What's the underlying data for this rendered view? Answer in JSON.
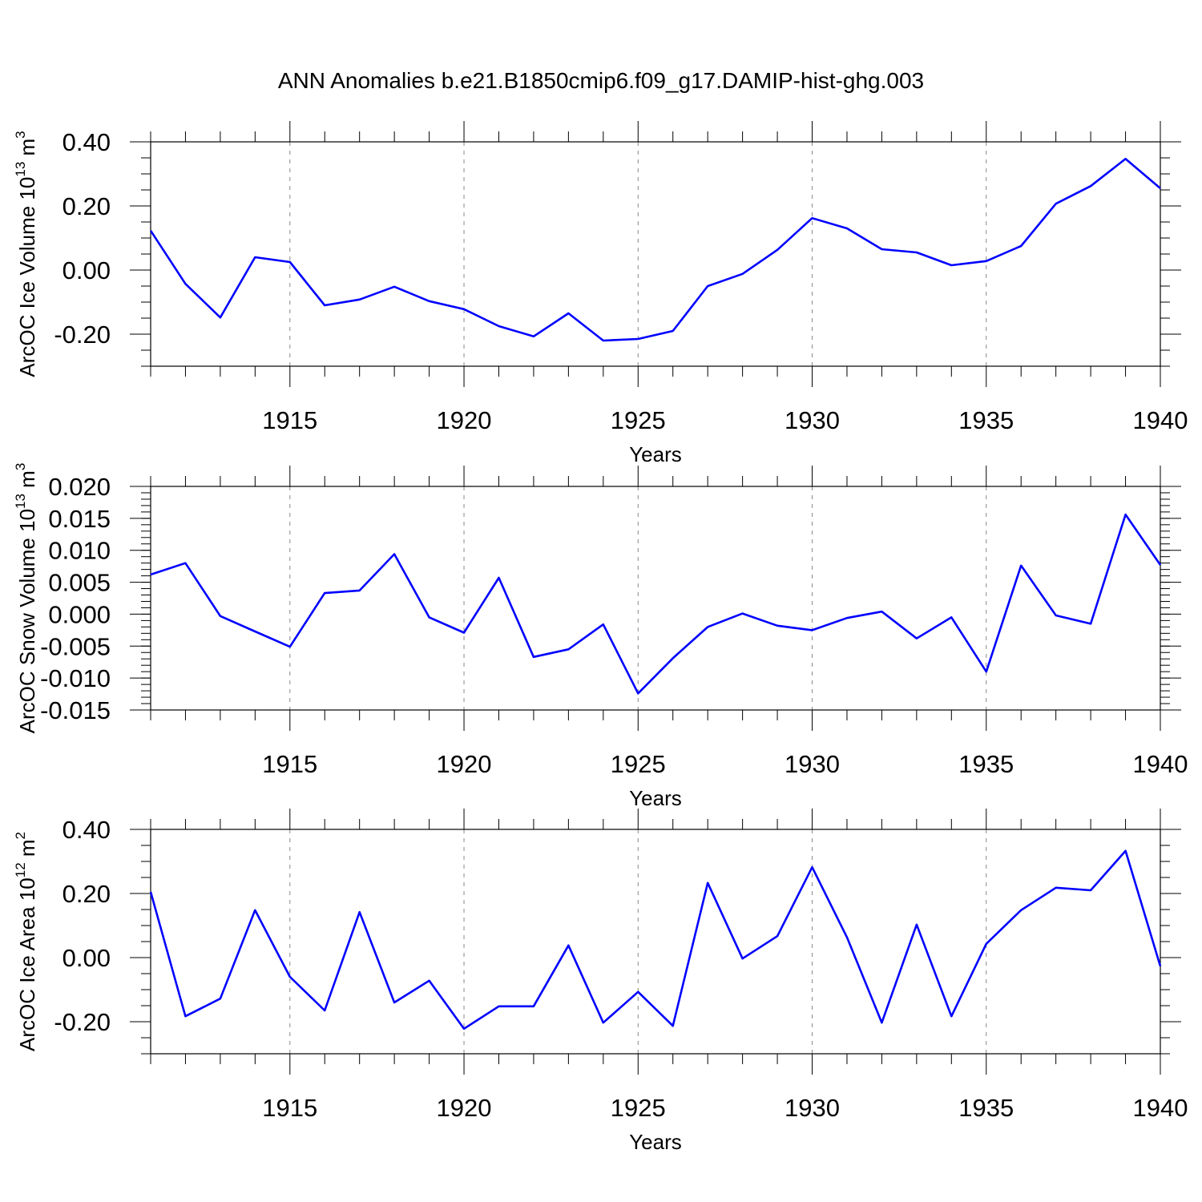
{
  "title": "ANN Anomalies b.e21.B1850cmip6.f09_g17.DAMIP-hist-ghg.003",
  "colors": {
    "series": "#0000ff",
    "axis": "#000000",
    "grid": "#888888"
  },
  "chart_data": [
    {
      "type": "line",
      "title": "ANN Anomalies b.e21.B1850cmip6.f09_g17.DAMIP-hist-ghg.003",
      "ylabel": "ArcOC Ice Volume 10",
      "ylabel_exp": "13",
      "ylabel_unit": " m",
      "ylabel_unit_exp": "3",
      "xlabel": "Years",
      "xlim": [
        1911,
        1940
      ],
      "ylim": [
        -0.3,
        0.4
      ],
      "yticks": [
        -0.2,
        0.0,
        0.2,
        0.4
      ],
      "ytick_labels": [
        "-0.20",
        "0.00",
        "0.20",
        "0.40"
      ],
      "yminor_step": 0.05,
      "xticks": [
        1915,
        1920,
        1925,
        1930,
        1935,
        1940
      ],
      "xtick_labels": [
        "1915",
        "1920",
        "1925",
        "1930",
        "1935",
        "1940"
      ],
      "grid": "x-major dashed",
      "x": [
        1911,
        1912,
        1913,
        1914,
        1915,
        1916,
        1917,
        1918,
        1919,
        1920,
        1921,
        1922,
        1923,
        1924,
        1925,
        1926,
        1927,
        1928,
        1929,
        1930,
        1931,
        1932,
        1933,
        1934,
        1935,
        1936,
        1937,
        1938,
        1939,
        1940
      ],
      "series": [
        {
          "name": "ArcOC Ice Volume",
          "values": [
            0.123,
            -0.043,
            -0.148,
            0.04,
            0.025,
            -0.11,
            -0.092,
            -0.052,
            -0.097,
            -0.122,
            -0.175,
            -0.207,
            -0.135,
            -0.22,
            -0.215,
            -0.19,
            -0.05,
            -0.012,
            0.063,
            0.162,
            0.13,
            0.065,
            0.055,
            0.015,
            0.028,
            0.075,
            0.207,
            0.262,
            0.347,
            0.255
          ]
        }
      ]
    },
    {
      "type": "line",
      "ylabel": "ArcOC Snow Volume 10",
      "ylabel_exp": "13",
      "ylabel_unit": " m",
      "ylabel_unit_exp": "3",
      "xlabel": "Years",
      "xlim": [
        1911,
        1940
      ],
      "ylim": [
        -0.015,
        0.02
      ],
      "yticks": [
        -0.015,
        -0.01,
        -0.005,
        0.0,
        0.005,
        0.01,
        0.015,
        0.02
      ],
      "ytick_labels": [
        "-0.015",
        "-0.010",
        "-0.005",
        "0.000",
        "0.005",
        "0.010",
        "0.015",
        "0.020"
      ],
      "yminor_step": 0.001,
      "xticks": [
        1915,
        1920,
        1925,
        1930,
        1935,
        1940
      ],
      "xtick_labels": [
        "1915",
        "1920",
        "1925",
        "1930",
        "1935",
        "1940"
      ],
      "grid": "x-major dashed",
      "x": [
        1911,
        1912,
        1913,
        1914,
        1915,
        1916,
        1917,
        1918,
        1919,
        1920,
        1921,
        1922,
        1923,
        1924,
        1925,
        1926,
        1927,
        1928,
        1929,
        1930,
        1931,
        1932,
        1933,
        1934,
        1935,
        1936,
        1937,
        1938,
        1939,
        1940
      ],
      "series": [
        {
          "name": "ArcOC Snow Volume",
          "values": [
            0.0062,
            0.008,
            -0.0003,
            -0.0027,
            -0.0051,
            0.0033,
            0.0037,
            0.0094,
            -0.0005,
            -0.0029,
            0.0057,
            -0.0067,
            -0.0055,
            -0.0016,
            -0.0124,
            -0.0069,
            -0.002,
            0.0001,
            -0.0018,
            -0.0025,
            -0.0006,
            0.0004,
            -0.0038,
            -0.0005,
            -0.009,
            0.0076,
            -0.0002,
            -0.0015,
            0.0156,
            0.0077
          ]
        }
      ]
    },
    {
      "type": "line",
      "ylabel": "ArcOC Ice Area 10",
      "ylabel_exp": "12",
      "ylabel_unit": " m",
      "ylabel_unit_exp": "2",
      "xlabel": "Years",
      "xlim": [
        1911,
        1940
      ],
      "ylim": [
        -0.3,
        0.4
      ],
      "yticks": [
        -0.2,
        0.0,
        0.2,
        0.4
      ],
      "ytick_labels": [
        "-0.20",
        "0.00",
        "0.20",
        "0.40"
      ],
      "yminor_step": 0.05,
      "xticks": [
        1915,
        1920,
        1925,
        1930,
        1935,
        1940
      ],
      "xtick_labels": [
        "1915",
        "1920",
        "1925",
        "1930",
        "1935",
        "1940"
      ],
      "grid": "x-major dashed",
      "x": [
        1911,
        1912,
        1913,
        1914,
        1915,
        1916,
        1917,
        1918,
        1919,
        1920,
        1921,
        1922,
        1923,
        1924,
        1925,
        1926,
        1927,
        1928,
        1929,
        1930,
        1931,
        1932,
        1933,
        1934,
        1935,
        1936,
        1937,
        1938,
        1939,
        1940
      ],
      "series": [
        {
          "name": "ArcOC Ice Area",
          "values": [
            0.205,
            -0.183,
            -0.128,
            0.148,
            -0.06,
            -0.165,
            0.142,
            -0.14,
            -0.072,
            -0.222,
            -0.152,
            -0.152,
            0.038,
            -0.203,
            -0.107,
            -0.213,
            0.233,
            -0.003,
            0.067,
            0.282,
            0.063,
            -0.203,
            0.103,
            -0.183,
            0.043,
            0.148,
            0.218,
            0.21,
            0.333,
            -0.027
          ]
        }
      ]
    }
  ]
}
